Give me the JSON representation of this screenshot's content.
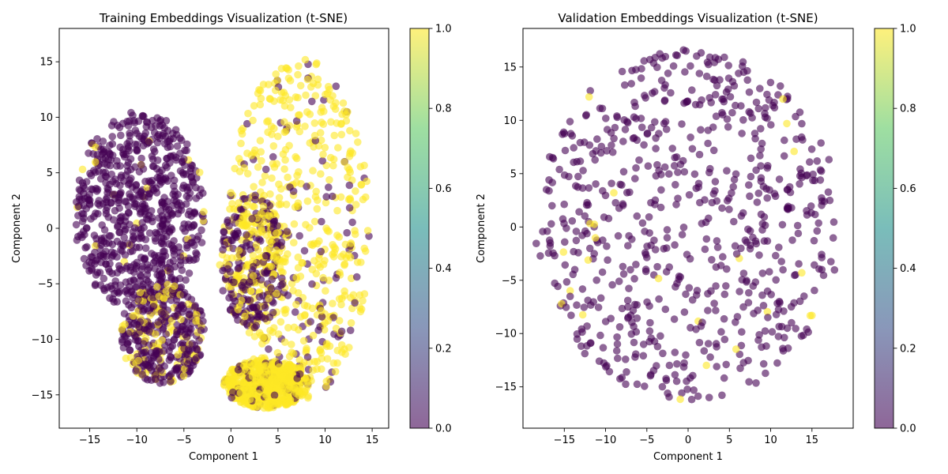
{
  "chart_data": [
    {
      "type": "scatter",
      "title": "Training Embeddings Visualization (t-SNE)",
      "xlabel": "Component 1",
      "ylabel": "Component 2",
      "xlim": [
        -18,
        17
      ],
      "ylim": [
        -18,
        18
      ],
      "xticks": [
        -15,
        -10,
        -5,
        0,
        5,
        10,
        15
      ],
      "yticks": [
        -15,
        -10,
        -5,
        0,
        5,
        10,
        15
      ],
      "xtick_labels": [
        "−15",
        "−10",
        "−5",
        "0",
        "5",
        "10",
        "15"
      ],
      "ytick_labels": [
        "−15",
        "−10",
        "−5",
        "0",
        "5",
        "10",
        "15"
      ],
      "grid": false,
      "colormap": "viridis",
      "marker_alpha": 0.6,
      "colorbar": {
        "range": [
          0.0,
          1.0
        ],
        "ticks": [
          0.0,
          0.2,
          0.4,
          0.6,
          0.8,
          1.0
        ],
        "tick_labels": [
          "0.0",
          "0.2",
          "0.4",
          "0.6",
          "0.8",
          "1.0"
        ],
        "colors": [
          "#440154",
          "#3b528b",
          "#21918c",
          "#5ec962",
          "#fde725"
        ]
      },
      "clusters": [
        {
          "name": "left-region",
          "label_value": 0,
          "center": [
            -9.5,
            1.5
          ],
          "radius": [
            7.0,
            9.0
          ],
          "density": 1.0,
          "minority_share": 0.03
        },
        {
          "name": "lower-left-region",
          "label_value": 0,
          "center": [
            -7.0,
            -9.5
          ],
          "radius": [
            4.5,
            4.5
          ],
          "density": 0.55,
          "minority_share": 0.3
        },
        {
          "name": "right-region",
          "label_value": 1,
          "center": [
            7.5,
            0.0
          ],
          "radius": [
            7.5,
            15.5
          ],
          "density": 0.85,
          "minority_share": 0.18
        },
        {
          "name": "center-mixed",
          "label_value": 0,
          "center": [
            2.5,
            -3.0
          ],
          "radius": [
            3.5,
            6.0
          ],
          "density": 0.45,
          "minority_share": 0.45
        },
        {
          "name": "bottom-region",
          "label_value": 1,
          "center": [
            4.0,
            -14.0
          ],
          "radius": [
            4.5,
            2.2
          ],
          "density": 0.8,
          "minority_share": 0.1
        }
      ]
    },
    {
      "type": "scatter",
      "title": "Validation Embeddings Visualization (t-SNE)",
      "xlabel": "Component 1",
      "ylabel": "Component 2",
      "xlim": [
        -20,
        20
      ],
      "ylim": [
        -19,
        18.5
      ],
      "xticks": [
        -15,
        -10,
        -5,
        0,
        5,
        10,
        15
      ],
      "yticks": [
        -15,
        -10,
        -5,
        0,
        5,
        10,
        15
      ],
      "xtick_labels": [
        "−15",
        "−10",
        "−5",
        "0",
        "5",
        "10",
        "15"
      ],
      "ytick_labels": [
        "−15",
        "−10",
        "−5",
        "0",
        "5",
        "10",
        "15"
      ],
      "grid": false,
      "colormap": "viridis",
      "marker_alpha": 0.6,
      "colorbar": {
        "range": [
          0.0,
          1.0
        ],
        "ticks": [
          0.0,
          0.2,
          0.4,
          0.6,
          0.8,
          1.0
        ],
        "tick_labels": [
          "0.0",
          "0.2",
          "0.4",
          "0.6",
          "0.8",
          "1.0"
        ],
        "colors": [
          "#440154",
          "#3b528b",
          "#21918c",
          "#5ec962",
          "#fde725"
        ]
      },
      "clusters": [
        {
          "name": "whole-cloud",
          "label_value": 0,
          "center": [
            0.0,
            0.0
          ],
          "radius": [
            18.5,
            16.5
          ],
          "density": 1.0,
          "minority_share": 0.05
        }
      ]
    }
  ]
}
